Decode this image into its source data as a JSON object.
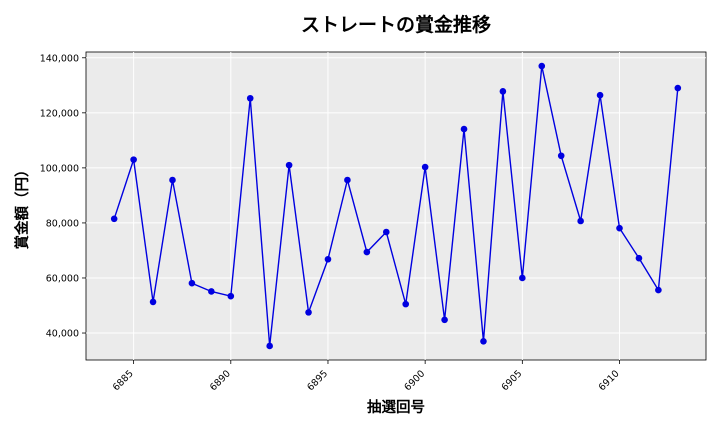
{
  "chart_data": {
    "type": "line",
    "title": "ストレートの賞金推移",
    "xlabel": "抽選回号",
    "ylabel": "賞金額（円）",
    "x": [
      6884,
      6885,
      6886,
      6887,
      6888,
      6889,
      6890,
      6891,
      6892,
      6893,
      6894,
      6895,
      6896,
      6897,
      6898,
      6899,
      6900,
      6901,
      6902,
      6903,
      6904,
      6905,
      6906,
      6907,
      6908,
      6909,
      6910,
      6911,
      6912,
      6913
    ],
    "series": [
      {
        "values": [
          81500,
          103000,
          51300,
          95600,
          58100,
          55100,
          53400,
          125300,
          35300,
          101000,
          47500,
          66800,
          95600,
          69400,
          76700,
          50500,
          100300,
          44800,
          114100,
          37000,
          127800,
          60000,
          137000,
          104400,
          80700,
          126400,
          78100,
          67200,
          55600,
          129000
        ],
        "color": "#0000e0"
      }
    ],
    "xticks": [
      6885,
      6890,
      6895,
      6900,
      6905,
      6910
    ],
    "yticks": [
      40000,
      60000,
      80000,
      100000,
      120000,
      140000
    ],
    "ytick_labels": [
      "40,000",
      "60,000",
      "80,000",
      "100,000",
      "120,000",
      "140,000"
    ],
    "xlim": [
      6882.55,
      6914.45
    ],
    "ylim": [
      30200,
      142100
    ],
    "grid": true,
    "background": "#ebebeb"
  }
}
